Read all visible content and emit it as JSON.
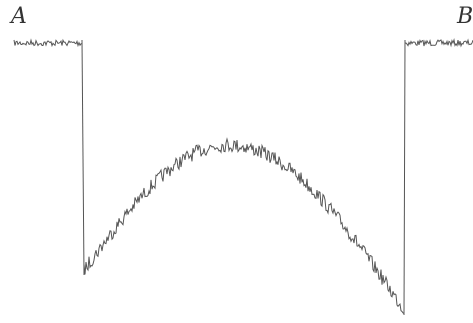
{
  "labels": {
    "start": "A",
    "end": "B"
  },
  "colors": {
    "trace": "#555555",
    "label": "#333333",
    "background": "#ffffff"
  }
}
